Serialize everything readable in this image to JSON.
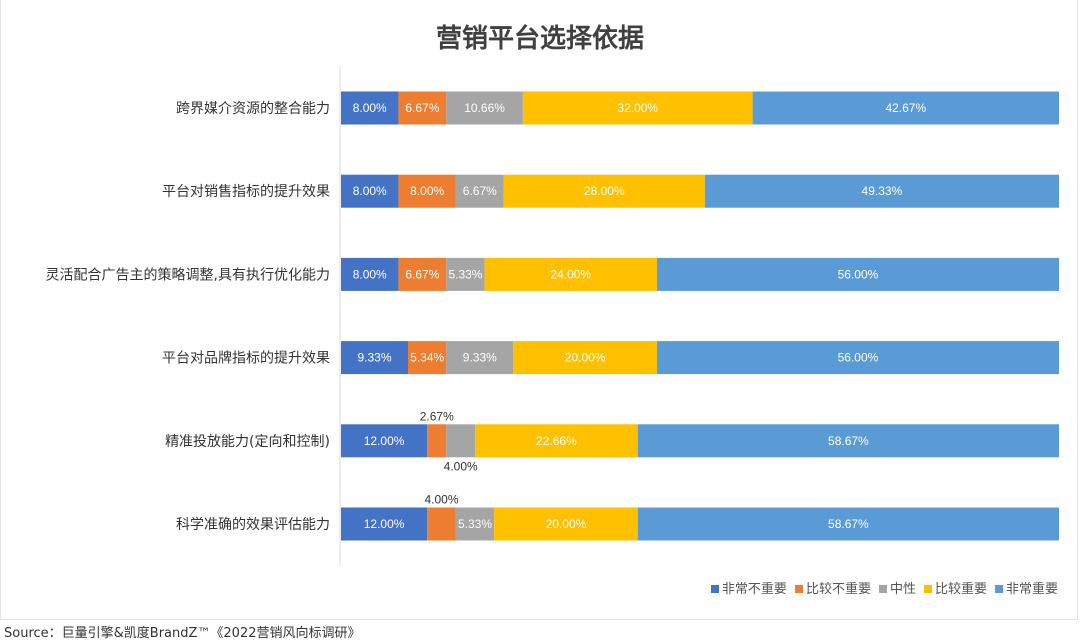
{
  "chart_data": {
    "type": "bar",
    "orientation": "horizontal",
    "stacked": true,
    "title": "营销平台选择依据",
    "categories": [
      "跨界媒介资源的整合能力",
      "平台对销售指标的提升效果",
      "灵活配合广告主的策略调整,具有执行优化能力",
      "平台对品牌指标的提升效果",
      "精准投放能力(定向和控制)",
      "科学准确的效果评估能力"
    ],
    "series": [
      {
        "name": "非常不重要",
        "color": "#4472C4",
        "values": [
          8.0,
          8.0,
          8.0,
          9.33,
          12.0,
          12.0
        ]
      },
      {
        "name": "比较不重要",
        "color": "#ED7D31",
        "values": [
          6.67,
          8.0,
          6.67,
          5.34,
          2.67,
          4.0
        ]
      },
      {
        "name": "中性",
        "color": "#A5A5A5",
        "values": [
          10.66,
          6.67,
          5.33,
          9.33,
          4.0,
          5.33
        ]
      },
      {
        "name": "比较重要",
        "color": "#FFC000",
        "values": [
          32.0,
          28.0,
          24.0,
          20.0,
          22.66,
          20.0
        ]
      },
      {
        "name": "非常重要",
        "color": "#5B9BD5",
        "values": [
          42.67,
          49.33,
          56.0,
          56.0,
          58.67,
          58.67
        ]
      }
    ],
    "xlim": [
      0,
      100
    ],
    "legend": "bottom-right",
    "value_suffix": "%"
  },
  "source": "Source：巨量引擎&凯度BrandZ™《2022营销风向标调研》"
}
